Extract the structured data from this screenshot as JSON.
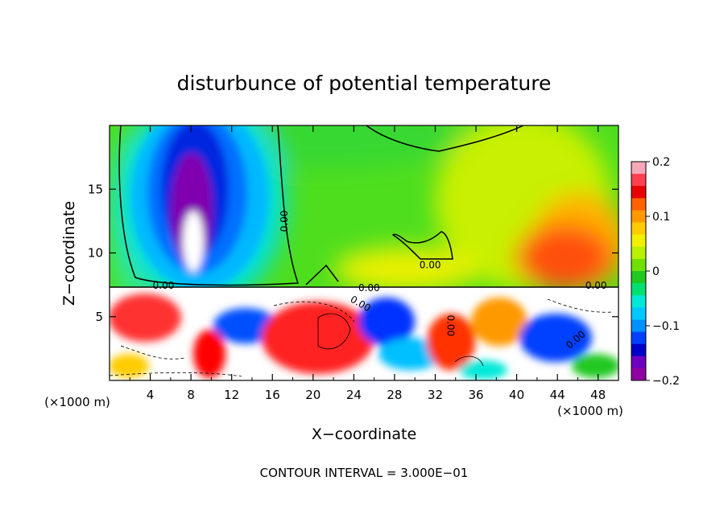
{
  "chart_data": {
    "type": "heatmap",
    "title": "disturbunce of potential temperature",
    "xlabel": "X−coordinate",
    "ylabel": "Z−coordinate",
    "x_unit_left": "(×1000 m)",
    "x_unit_right": "(×1000 m)",
    "xlim": [
      0,
      50
    ],
    "ylim": [
      0,
      20
    ],
    "xticks": [
      4,
      8,
      12,
      16,
      20,
      24,
      28,
      32,
      36,
      40,
      44,
      48
    ],
    "yticks": [
      5,
      10,
      15
    ],
    "colorbar": {
      "range": [
        -0.2,
        0.2
      ],
      "tick_values": [
        0.2,
        0.1,
        0,
        -0.1,
        -0.2
      ],
      "tick_labels": [
        "0.2",
        "0.1",
        "0",
        "−0.1",
        "−0.2"
      ],
      "colors": [
        "#f7a8b8",
        "#ff4050",
        "#e80000",
        "#ff6000",
        "#ff9900",
        "#ffcc00",
        "#f0f000",
        "#b8f000",
        "#70e000",
        "#20c820",
        "#00e070",
        "#00e8d8",
        "#00c8ff",
        "#0090ff",
        "#0040ff",
        "#0000c8",
        "#7000c0",
        "#9000a0"
      ]
    },
    "contour_labels": [
      "0.00",
      "0.00",
      "0.00",
      "0.00",
      "0.00",
      "0.00",
      "0.00",
      "0.00"
    ],
    "footer": "CONTOUR INTERVAL = 3.000E−01"
  }
}
